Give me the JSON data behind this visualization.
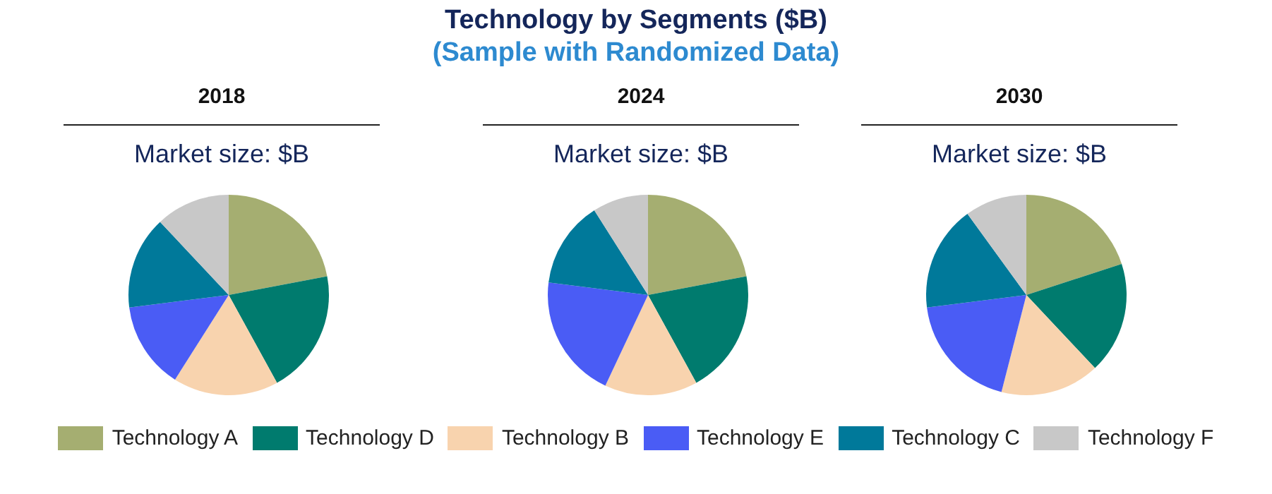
{
  "chart_data": [
    {
      "type": "other",
      "title": "Technology by Segments ($B)",
      "subtitle": "(Sample with Randomized Data)"
    },
    {
      "type": "pie",
      "title": "2018",
      "subtitle": "Market size: $B",
      "categories": [
        "Technology A",
        "Technology D",
        "Technology B",
        "Technology E",
        "Technology C",
        "Technology F"
      ],
      "values": [
        22,
        20,
        17,
        14,
        15,
        12
      ],
      "colors": [
        "#a5ae71",
        "#007b6e",
        "#f8d3ae",
        "#4a5cf5",
        "#00799a",
        "#c8c8c8"
      ],
      "legend": "bottom"
    },
    {
      "type": "pie",
      "title": "2024",
      "subtitle": "Market size: $B",
      "categories": [
        null,
        null,
        null,
        null,
        null,
        null
      ],
      "values": [
        22,
        20,
        15,
        20,
        14,
        9
      ],
      "colors": [
        "#a5ae71",
        "#007b6e",
        "#f8d3ae",
        "#4a5cf5",
        "#00799a",
        "#c8c8c8"
      ]
    },
    {
      "type": "pie",
      "title": "2030",
      "subtitle": "Market size: $B",
      "categories": [
        null,
        null,
        null,
        null,
        null,
        null
      ],
      "values": [
        20,
        18,
        16,
        19,
        17,
        10
      ],
      "colors": [
        "#a5ae71",
        "#007b6e",
        "#f8d3ae",
        "#4a5cf5",
        "#00799a",
        "#c8c8c8"
      ]
    }
  ]
}
